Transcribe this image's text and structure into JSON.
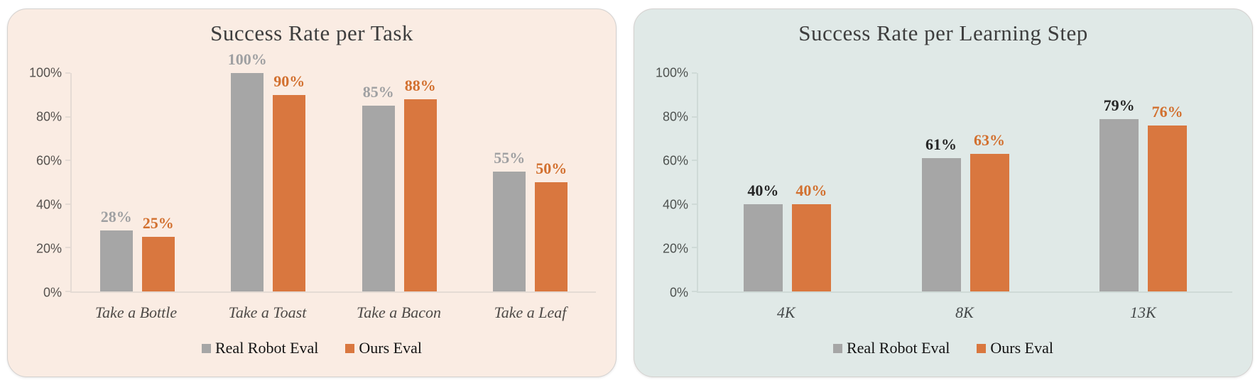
{
  "chart_data": [
    {
      "type": "bar",
      "title": "Success Rate per Task",
      "categories": [
        "Take a Bottle",
        "Take a Toast",
        "Take a Bacon",
        "Take a Leaf"
      ],
      "series": [
        {
          "name": "Real Robot Eval",
          "values": [
            28,
            100,
            85,
            55
          ],
          "bar_color": "#A6A6A6",
          "label_color": "#9FA0A2"
        },
        {
          "name": "Ours Eval",
          "values": [
            25,
            90,
            88,
            50
          ],
          "bar_color": "#D9773F",
          "label_color": "#D2702F"
        }
      ],
      "value_suffix": "%",
      "ylim": [
        0,
        100
      ],
      "ytick_labels": [
        "100%",
        "80%",
        "60%",
        "40%",
        "20%",
        "0%"
      ],
      "grid": false,
      "legend_position": "bottom-center",
      "panel_bg": "#FAECE3",
      "axis_color": "#E5DBD4",
      "tick_label_color": "#56524F",
      "category_label_color": "#4E4A47",
      "title_color": "#3E3E3E"
    },
    {
      "type": "bar",
      "title": "Success Rate per Learning Step",
      "categories": [
        "4K",
        "8K",
        "13K"
      ],
      "series": [
        {
          "name": "Real Robot Eval",
          "values": [
            40,
            61,
            79
          ],
          "bar_color": "#A6A6A6",
          "label_color": "#262626"
        },
        {
          "name": "Ours Eval",
          "values": [
            40,
            63,
            76
          ],
          "bar_color": "#D9773F",
          "label_color": "#D2702F"
        }
      ],
      "value_suffix": "%",
      "ylim": [
        0,
        100
      ],
      "ytick_labels": [
        "100%",
        "80%",
        "60%",
        "40%",
        "20%",
        "0%"
      ],
      "grid": false,
      "legend_position": "bottom-center",
      "panel_bg": "#E0E9E7",
      "axis_color": "#CFDAD7",
      "tick_label_color": "#4E5250",
      "category_label_color": "#45494A",
      "title_color": "#3E3E3E"
    }
  ]
}
